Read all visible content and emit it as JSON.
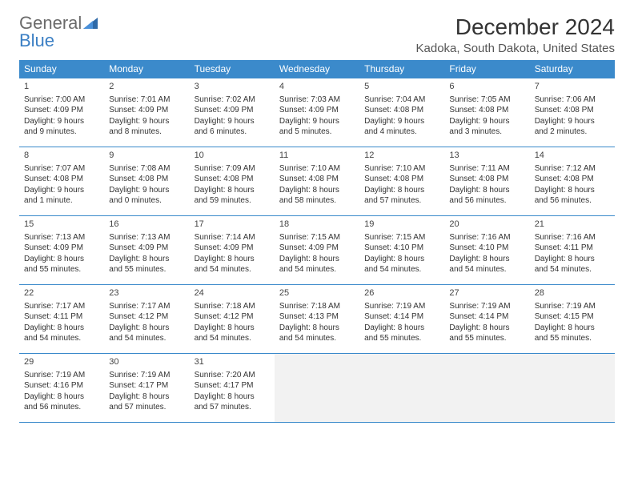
{
  "logo": {
    "text1": "General",
    "text2": "Blue"
  },
  "title": "December 2024",
  "location": "Kadoka, South Dakota, United States",
  "colors": {
    "header_bg": "#3b8acb",
    "header_text": "#ffffff",
    "border": "#3b8acb",
    "empty_bg": "#f2f2f2",
    "page_bg": "#ffffff",
    "text": "#333333",
    "logo_gray": "#6a6a6a",
    "logo_blue": "#3b7fc4"
  },
  "weekdays": [
    "Sunday",
    "Monday",
    "Tuesday",
    "Wednesday",
    "Thursday",
    "Friday",
    "Saturday"
  ],
  "labels": {
    "sunrise": "Sunrise:",
    "sunset": "Sunset:",
    "daylight": "Daylight:"
  },
  "weeks": [
    [
      {
        "n": 1,
        "sr": "7:00 AM",
        "ss": "4:09 PM",
        "dl": "9 hours and 9 minutes."
      },
      {
        "n": 2,
        "sr": "7:01 AM",
        "ss": "4:09 PM",
        "dl": "9 hours and 8 minutes."
      },
      {
        "n": 3,
        "sr": "7:02 AM",
        "ss": "4:09 PM",
        "dl": "9 hours and 6 minutes."
      },
      {
        "n": 4,
        "sr": "7:03 AM",
        "ss": "4:09 PM",
        "dl": "9 hours and 5 minutes."
      },
      {
        "n": 5,
        "sr": "7:04 AM",
        "ss": "4:08 PM",
        "dl": "9 hours and 4 minutes."
      },
      {
        "n": 6,
        "sr": "7:05 AM",
        "ss": "4:08 PM",
        "dl": "9 hours and 3 minutes."
      },
      {
        "n": 7,
        "sr": "7:06 AM",
        "ss": "4:08 PM",
        "dl": "9 hours and 2 minutes."
      }
    ],
    [
      {
        "n": 8,
        "sr": "7:07 AM",
        "ss": "4:08 PM",
        "dl": "9 hours and 1 minute."
      },
      {
        "n": 9,
        "sr": "7:08 AM",
        "ss": "4:08 PM",
        "dl": "9 hours and 0 minutes."
      },
      {
        "n": 10,
        "sr": "7:09 AM",
        "ss": "4:08 PM",
        "dl": "8 hours and 59 minutes."
      },
      {
        "n": 11,
        "sr": "7:10 AM",
        "ss": "4:08 PM",
        "dl": "8 hours and 58 minutes."
      },
      {
        "n": 12,
        "sr": "7:10 AM",
        "ss": "4:08 PM",
        "dl": "8 hours and 57 minutes."
      },
      {
        "n": 13,
        "sr": "7:11 AM",
        "ss": "4:08 PM",
        "dl": "8 hours and 56 minutes."
      },
      {
        "n": 14,
        "sr": "7:12 AM",
        "ss": "4:08 PM",
        "dl": "8 hours and 56 minutes."
      }
    ],
    [
      {
        "n": 15,
        "sr": "7:13 AM",
        "ss": "4:09 PM",
        "dl": "8 hours and 55 minutes."
      },
      {
        "n": 16,
        "sr": "7:13 AM",
        "ss": "4:09 PM",
        "dl": "8 hours and 55 minutes."
      },
      {
        "n": 17,
        "sr": "7:14 AM",
        "ss": "4:09 PM",
        "dl": "8 hours and 54 minutes."
      },
      {
        "n": 18,
        "sr": "7:15 AM",
        "ss": "4:09 PM",
        "dl": "8 hours and 54 minutes."
      },
      {
        "n": 19,
        "sr": "7:15 AM",
        "ss": "4:10 PM",
        "dl": "8 hours and 54 minutes."
      },
      {
        "n": 20,
        "sr": "7:16 AM",
        "ss": "4:10 PM",
        "dl": "8 hours and 54 minutes."
      },
      {
        "n": 21,
        "sr": "7:16 AM",
        "ss": "4:11 PM",
        "dl": "8 hours and 54 minutes."
      }
    ],
    [
      {
        "n": 22,
        "sr": "7:17 AM",
        "ss": "4:11 PM",
        "dl": "8 hours and 54 minutes."
      },
      {
        "n": 23,
        "sr": "7:17 AM",
        "ss": "4:12 PM",
        "dl": "8 hours and 54 minutes."
      },
      {
        "n": 24,
        "sr": "7:18 AM",
        "ss": "4:12 PM",
        "dl": "8 hours and 54 minutes."
      },
      {
        "n": 25,
        "sr": "7:18 AM",
        "ss": "4:13 PM",
        "dl": "8 hours and 54 minutes."
      },
      {
        "n": 26,
        "sr": "7:19 AM",
        "ss": "4:14 PM",
        "dl": "8 hours and 55 minutes."
      },
      {
        "n": 27,
        "sr": "7:19 AM",
        "ss": "4:14 PM",
        "dl": "8 hours and 55 minutes."
      },
      {
        "n": 28,
        "sr": "7:19 AM",
        "ss": "4:15 PM",
        "dl": "8 hours and 55 minutes."
      }
    ],
    [
      {
        "n": 29,
        "sr": "7:19 AM",
        "ss": "4:16 PM",
        "dl": "8 hours and 56 minutes."
      },
      {
        "n": 30,
        "sr": "7:19 AM",
        "ss": "4:17 PM",
        "dl": "8 hours and 57 minutes."
      },
      {
        "n": 31,
        "sr": "7:20 AM",
        "ss": "4:17 PM",
        "dl": "8 hours and 57 minutes."
      },
      null,
      null,
      null,
      null
    ]
  ]
}
